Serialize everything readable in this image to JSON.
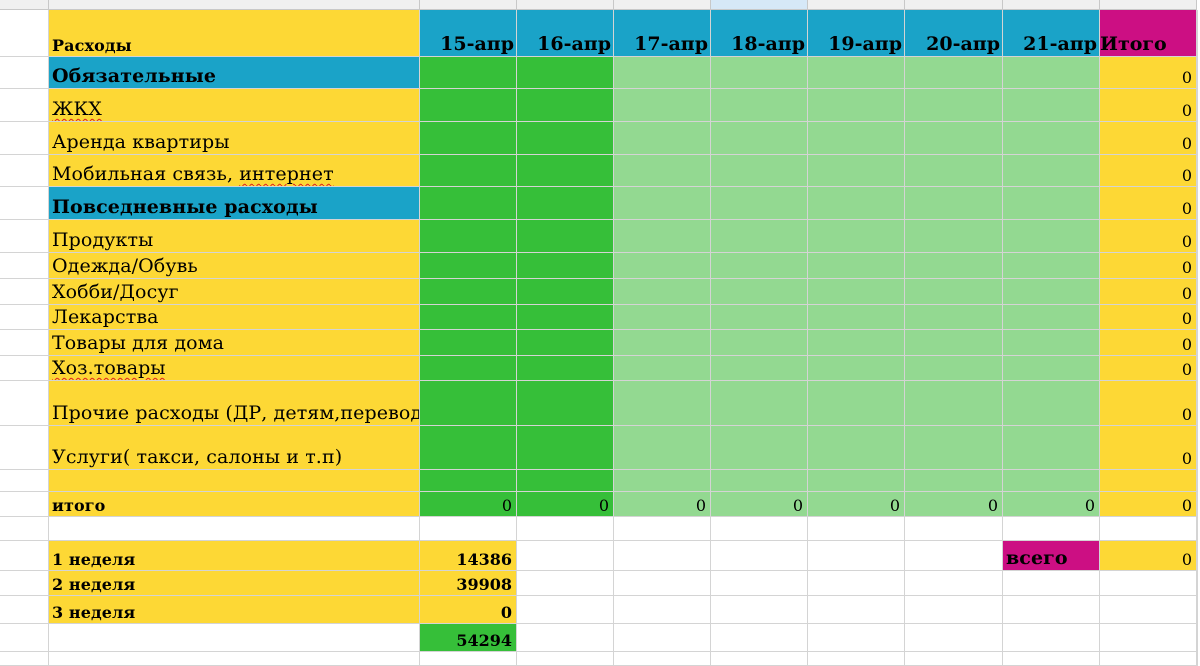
{
  "colors": {
    "yellow": "#fdd835",
    "teal": "#1aa3c8",
    "green_dark": "#36bf39",
    "green_light": "#93d991",
    "magenta": "#cc0f83",
    "white": "#ffffff"
  },
  "header": {
    "label": "Расходы",
    "dates": [
      "15-апр",
      "16-апр",
      "17-апр",
      "18-апр",
      "19-апр",
      "20-апр",
      "21-апр"
    ],
    "total": "Итого"
  },
  "rows": [
    {
      "label": "Обязательные",
      "type": "section",
      "total": "0"
    },
    {
      "label": "ЖКХ",
      "type": "item",
      "total": "0"
    },
    {
      "label": "Аренда квартиры",
      "type": "item",
      "total": "0"
    },
    {
      "label": "Мобильная связь, интернет",
      "type": "item",
      "total": "0"
    },
    {
      "label": "Повседневные расходы",
      "type": "section",
      "total": "0"
    },
    {
      "label": "Продукты",
      "type": "item",
      "total": "0"
    },
    {
      "label": "Одежда/Обувь",
      "type": "item",
      "total": "0"
    },
    {
      "label": "Хобби/Досуг",
      "type": "item",
      "total": "0"
    },
    {
      "label": "Лекарства",
      "type": "item",
      "total": "0"
    },
    {
      "label": "Товары для дома",
      "type": "item",
      "total": "0"
    },
    {
      "label": "Хоз.товары",
      "type": "item",
      "total": "0"
    },
    {
      "label": "Прочие расходы (ДР, детям,переводы)",
      "type": "item",
      "total": "0"
    },
    {
      "label": "Услуги( такси, салоны и т.п)",
      "type": "item",
      "total": "0"
    },
    {
      "label": "",
      "type": "blank",
      "total": ""
    },
    {
      "label": "итого",
      "type": "sum",
      "total": "0",
      "day_values": [
        "0",
        "0",
        "0",
        "0",
        "0",
        "0",
        "0"
      ]
    }
  ],
  "weeks": [
    {
      "label": "1 неделя",
      "value": "14386"
    },
    {
      "label": "2 неделя",
      "value": "39908"
    },
    {
      "label": "3 неделя",
      "value": "0"
    }
  ],
  "grand_sum": "54294",
  "vsego": {
    "label": "всего",
    "value": "0"
  }
}
